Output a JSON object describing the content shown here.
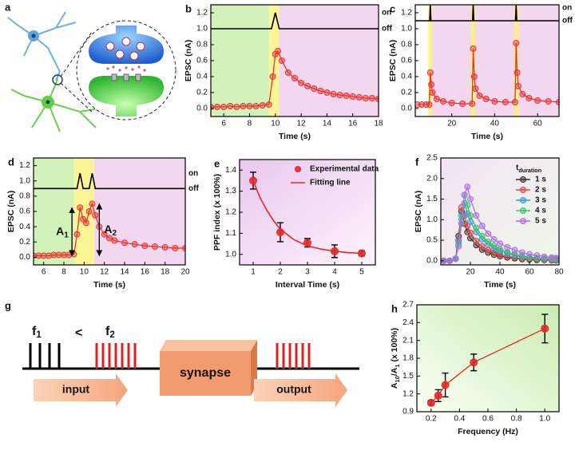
{
  "diagrams": {
    "a": {
      "label": "a"
    },
    "g": {
      "label": "g",
      "f1": [
        "f",
        "1"
      ],
      "less": "<",
      "f2": [
        "f",
        "2"
      ],
      "synapse": "synapse",
      "input": "input",
      "output": "output"
    }
  },
  "chart_data": [
    {
      "type": "line",
      "panel": "b",
      "x_label": "Time (s)",
      "y_label": "EPSC (nA)",
      "xlim": [
        5,
        18
      ],
      "xticks": [
        6,
        8,
        10,
        12,
        14,
        16,
        18
      ],
      "ylim": [
        -0.1,
        1.3
      ],
      "yticks": [
        {
          "value": 0,
          "label": "0.0"
        },
        0.2,
        0.4,
        0.6,
        0.8,
        {
          "value": 1,
          "label": "1.0"
        },
        1.2
      ],
      "states": [
        {
          "value": 1.2,
          "label": "on"
        },
        {
          "value": 1,
          "label": "off"
        }
      ],
      "regions": [
        {
          "from": 5,
          "to": 9.5,
          "color": "#c6efa8"
        },
        {
          "from": 9.5,
          "to": 10.3,
          "color": "#fbf27a"
        },
        {
          "from": 10.3,
          "to": 18,
          "color": "#f0cdea"
        }
      ],
      "series": [
        {
          "color": "#000000",
          "line": true,
          "marker": false,
          "x": [
            5,
            9.7,
            10,
            10.3,
            18
          ],
          "values": [
            1,
            1,
            1.2,
            1,
            1
          ]
        },
        {
          "color": "#f03030",
          "line": true,
          "marker": true,
          "x": [
            5,
            5.5,
            6,
            6.5,
            7,
            7.5,
            8,
            8.5,
            9,
            9.5,
            9.8,
            10,
            10.2,
            10.5,
            11,
            11.5,
            12,
            12.5,
            13,
            13.5,
            14,
            14.5,
            15,
            15.5,
            16,
            16.5,
            17,
            17.5,
            18
          ],
          "values": [
            0.02,
            0.02,
            0.02,
            0.03,
            0.02,
            0.03,
            0.03,
            0.03,
            0.04,
            0.05,
            0.4,
            0.68,
            0.72,
            0.6,
            0.45,
            0.38,
            0.32,
            0.28,
            0.25,
            0.22,
            0.2,
            0.18,
            0.17,
            0.16,
            0.15,
            0.14,
            0.13,
            0.13,
            0.12
          ]
        }
      ]
    },
    {
      "type": "line",
      "panel": "c",
      "x_label": "Time (s)",
      "y_label": "EPSC (nA)",
      "xlim": [
        3,
        70
      ],
      "xticks": [
        20,
        40,
        60
      ],
      "ylim": [
        -0.1,
        1.3
      ],
      "yticks": [
        {
          "value": 0,
          "label": "0.0"
        },
        0.2,
        0.4,
        0.6,
        0.8,
        {
          "value": 1,
          "label": "1.0"
        },
        1.2
      ],
      "states": [
        {
          "value": 1.26,
          "label": "on"
        },
        {
          "value": 1.1,
          "label": "off"
        }
      ],
      "regions": [
        {
          "from": 10,
          "to": 70,
          "color": "#f0cdea"
        },
        {
          "from": 9,
          "to": 11,
          "color": "#fbf27a"
        },
        {
          "from": 29,
          "to": 31,
          "color": "#fbf27a"
        },
        {
          "from": 49,
          "to": 51,
          "color": "#fbf27a"
        }
      ],
      "series": [
        {
          "color": "#000000",
          "line": true,
          "marker": false,
          "x": [
            3,
            9.7,
            10,
            10.3,
            29.7,
            30,
            30.3,
            49.7,
            50,
            50.3,
            70
          ],
          "values": [
            1.1,
            1.1,
            1.3,
            1.1,
            1.1,
            1.3,
            1.1,
            1.1,
            1.3,
            1.1,
            1.1
          ]
        },
        {
          "color": "#f03030",
          "line": true,
          "marker": true,
          "x": [
            4,
            6,
            8,
            9.5,
            10,
            10.5,
            11,
            13,
            16,
            20,
            25,
            29.5,
            30,
            30.5,
            31,
            33,
            36,
            40,
            45,
            49.5,
            50,
            50.5,
            51,
            53,
            56,
            60,
            65,
            70
          ],
          "values": [
            0.05,
            0.05,
            0.05,
            0.05,
            0.45,
            0.3,
            0.2,
            0.12,
            0.09,
            0.07,
            0.06,
            0.06,
            0.75,
            0.4,
            0.25,
            0.16,
            0.12,
            0.09,
            0.08,
            0.08,
            0.82,
            0.45,
            0.28,
            0.18,
            0.13,
            0.1,
            0.09,
            0.08
          ]
        }
      ]
    },
    {
      "type": "line",
      "panel": "d",
      "x_label": "Time (s)",
      "y_label": "EPSC (nA)",
      "xlim": [
        5,
        20
      ],
      "xticks": [
        6,
        8,
        10,
        12,
        14,
        16,
        18,
        20
      ],
      "ylim": [
        -0.1,
        1.3
      ],
      "yticks": [
        {
          "value": 0,
          "label": "0.0"
        },
        0.2,
        0.4,
        0.6,
        0.8,
        {
          "value": 1,
          "label": "1.0"
        },
        1.2
      ],
      "states": [
        {
          "value": 1.1,
          "label": "on"
        },
        {
          "value": 0.9,
          "label": "off"
        }
      ],
      "regions": [
        {
          "from": 5,
          "to": 9,
          "color": "#c6efa8"
        },
        {
          "from": 9,
          "to": 11,
          "color": "#fbf27a"
        },
        {
          "from": 11,
          "to": 20,
          "color": "#f0cdea"
        }
      ],
      "annotations": [
        {
          "label": [
            "A",
            "1"
          ],
          "x": 8.8,
          "from": 0.02,
          "to": 0.65
        },
        {
          "label": [
            "A",
            "2"
          ],
          "x": 11.5,
          "from": 0.02,
          "to": 0.7
        }
      ],
      "series": [
        {
          "color": "#000000",
          "line": true,
          "marker": false,
          "x": [
            5,
            9.3,
            9.6,
            9.9,
            10.5,
            10.8,
            11.1,
            20
          ],
          "values": [
            0.9,
            0.9,
            1.1,
            0.9,
            0.9,
            1.1,
            0.9,
            0.9
          ]
        },
        {
          "color": "#f03030",
          "line": true,
          "marker": true,
          "x": [
            5,
            5.5,
            6,
            6.5,
            7,
            7.5,
            8,
            8.5,
            9,
            9.3,
            9.6,
            9.9,
            10.2,
            10.5,
            10.8,
            11.1,
            11.5,
            12,
            12.5,
            13,
            14,
            15,
            16,
            17,
            18,
            19,
            20
          ],
          "values": [
            0.02,
            0.02,
            0.02,
            0.02,
            0.03,
            0.03,
            0.03,
            0.03,
            0.04,
            0.3,
            0.65,
            0.5,
            0.45,
            0.6,
            0.7,
            0.55,
            0.4,
            0.3,
            0.25,
            0.22,
            0.19,
            0.17,
            0.15,
            0.14,
            0.13,
            0.12,
            0.12
          ]
        }
      ]
    },
    {
      "type": "scatter",
      "panel": "e",
      "x_label": "Interval Time (s)",
      "y_label": "PPF index (x 100%)",
      "xlim": [
        0.5,
        5.5
      ],
      "xticks": [
        1,
        2,
        3,
        4,
        5
      ],
      "ylim": [
        0.95,
        1.45
      ],
      "yticks": [
        {
          "value": 1,
          "label": "1.0"
        },
        1.1,
        1.2,
        1.3,
        1.4
      ],
      "legend": "upper right",
      "series": [
        {
          "name": "Experimental data",
          "color": "#e82828",
          "line": false,
          "marker": true,
          "x": [
            1,
            2,
            3,
            4,
            5
          ],
          "values": [
            1.35,
            1.105,
            1.055,
            1.015,
            1.005
          ],
          "errors": [
            0.04,
            0.045,
            0.02,
            0.03,
            0.012
          ]
        },
        {
          "name": "Fitting line",
          "color": "#e82828",
          "line": true,
          "marker": false,
          "x": [
            1,
            1.25,
            1.5,
            1.75,
            2,
            2.5,
            3,
            3.5,
            4,
            4.5,
            5
          ],
          "values": [
            1.35,
            1.27,
            1.21,
            1.16,
            1.12,
            1.07,
            1.04,
            1.025,
            1.015,
            1.008,
            1.005
          ]
        }
      ]
    },
    {
      "type": "line",
      "panel": "f",
      "x_label": "Time (s)",
      "y_label": "EPSC (nA)",
      "xlim": [
        0,
        80
      ],
      "xticks": [
        20,
        40,
        60,
        80
      ],
      "ylim": [
        -0.1,
        2.5
      ],
      "yticks": [
        {
          "value": 0,
          "label": "0.0"
        },
        0.5,
        {
          "value": 1,
          "label": "1.0"
        },
        1.5,
        {
          "value": 2,
          "label": "2.0"
        },
        2.5
      ],
      "legend": "upper right",
      "legend_title": [
        "t",
        "duration"
      ],
      "x": [
        2,
        6,
        10,
        12,
        14,
        16,
        18,
        20,
        24,
        28,
        32,
        36,
        40,
        45,
        50,
        55,
        60,
        65,
        70,
        75,
        78
      ],
      "series": [
        {
          "name": "1 s",
          "color": "#333333",
          "line": true,
          "marker": true,
          "values": [
            0,
            0,
            0.05,
            0.6,
            1.2,
            0.9,
            0.7,
            0.55,
            0.38,
            0.27,
            0.2,
            0.15,
            0.11,
            0.08,
            0.06,
            0.04,
            0.03,
            0.02,
            0.02,
            0.01,
            0.01
          ]
        },
        {
          "name": "2 s",
          "color": "#e04848",
          "line": true,
          "marker": true,
          "values": [
            0,
            0,
            0.05,
            0.5,
            1.3,
            1.1,
            0.85,
            0.68,
            0.48,
            0.35,
            0.26,
            0.2,
            0.15,
            0.11,
            0.08,
            0.06,
            0.05,
            0.04,
            0.03,
            0.02,
            0.02
          ]
        },
        {
          "name": "3 s",
          "color": "#3a9ad9",
          "line": true,
          "marker": true,
          "values": [
            0,
            0,
            0.05,
            0.45,
            1.1,
            1.4,
            1.15,
            0.95,
            0.7,
            0.52,
            0.4,
            0.31,
            0.24,
            0.18,
            0.13,
            0.1,
            0.08,
            0.06,
            0.05,
            0.04,
            0.03
          ]
        },
        {
          "name": "4 s",
          "color": "#3cc070",
          "line": true,
          "marker": true,
          "values": [
            0,
            0,
            0.05,
            0.4,
            1,
            1.6,
            1.35,
            1.1,
            0.8,
            0.6,
            0.46,
            0.36,
            0.28,
            0.21,
            0.16,
            0.12,
            0.09,
            0.07,
            0.06,
            0.05,
            0.04
          ]
        },
        {
          "name": "5 s",
          "color": "#b070e0",
          "line": true,
          "marker": true,
          "values": [
            0,
            0,
            0.05,
            0.35,
            0.9,
            1.6,
            1.8,
            1.5,
            1.1,
            0.85,
            0.66,
            0.52,
            0.42,
            0.33,
            0.26,
            0.2,
            0.16,
            0.13,
            0.1,
            0.08,
            0.07
          ]
        }
      ]
    },
    {
      "type": "scatter",
      "panel": "h",
      "x_label": "Frequency (Hz)",
      "y_label": [
        "A",
        "10",
        "/A",
        "1",
        " (x 100%)"
      ],
      "xlim": [
        0.1,
        1.1
      ],
      "xticks": [
        0.2,
        0.4,
        0.6,
        0.8,
        {
          "value": 1,
          "label": "1.0"
        }
      ],
      "ylim": [
        0.9,
        2.7
      ],
      "yticks": [
        0.9,
        1.2,
        1.5,
        1.8,
        2.1,
        2.4,
        2.7
      ],
      "series": [
        {
          "color": "#e82828",
          "line": true,
          "marker": true,
          "x": [
            0.2,
            0.25,
            0.3,
            0.5,
            1
          ],
          "values": [
            1.05,
            1.17,
            1.35,
            1.73,
            2.3
          ],
          "errors": [
            0.04,
            0.1,
            0.2,
            0.14,
            0.24
          ]
        }
      ]
    }
  ]
}
